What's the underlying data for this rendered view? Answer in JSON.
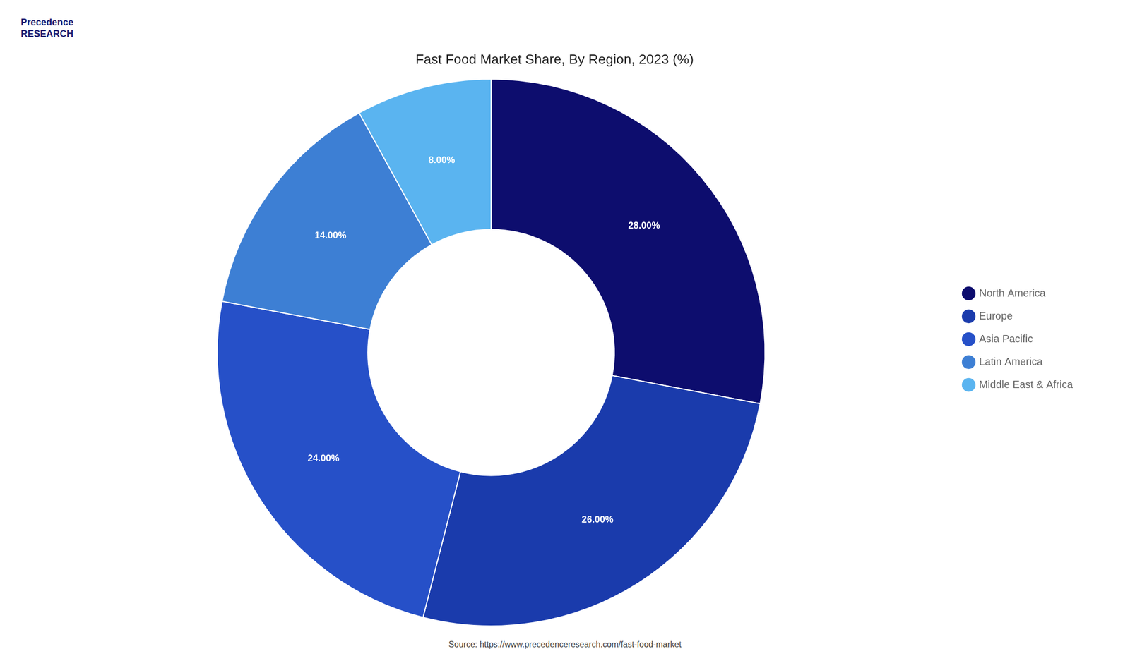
{
  "chart_data": {
    "type": "doughnut",
    "title": "Fast Food Market Share, By Region, 2023 (%)",
    "categories": [
      "North America",
      "Europe",
      "Asia Pacific",
      "Latin America",
      "Middle East & Africa"
    ],
    "values": [
      28,
      26,
      24,
      14,
      8
    ],
    "value_labels": [
      "28.00%",
      "26.00%",
      "24.00%",
      "14.00%",
      "8.00%"
    ],
    "colors": [
      "#0d0d6e",
      "#1a3bac",
      "#2650c8",
      "#3d7fd4",
      "#5ab4f0"
    ],
    "data_labels": true,
    "legend": "right",
    "annotations": [
      "Precedence\nRESEARCH",
      "Source: https://www.precedenceresearch.com/fast-food-market"
    ]
  }
}
